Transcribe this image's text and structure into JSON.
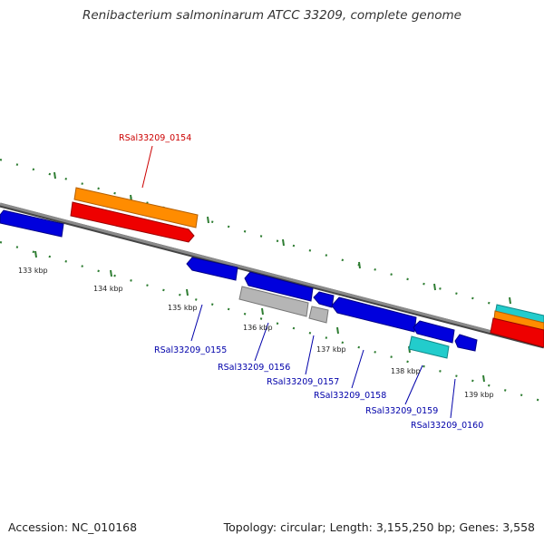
{
  "title": "Renibacterium salmoninarum ATCC 33209, complete genome",
  "footer": {
    "accession": "Accession: NC_010168",
    "summary": "Topology: circular; Length: 3,155,250 bp; Genes: 3,558"
  },
  "colors": {
    "backbone": "#777777",
    "tick": "#2e7d32",
    "blue_gene": "#0000dd",
    "gray_gene": "#b5b5b5",
    "orange_gene": "#ff8c00",
    "red_gene": "#ee0000",
    "cyan_gene": "#22cccc",
    "label_red": "#cc0000",
    "label_blue": "#0000aa"
  },
  "scale_labels": [
    "133 kbp",
    "134 kbp",
    "135 kbp",
    "136 kbp",
    "137 kbp",
    "138 kbp",
    "139 kbp"
  ],
  "gene_labels": [
    {
      "text": "RSal33209_0154",
      "color": "red"
    },
    {
      "text": "RSal33209_0155",
      "color": "blue"
    },
    {
      "text": "RSal33209_0156",
      "color": "blue"
    },
    {
      "text": "RSal33209_0157",
      "color": "blue"
    },
    {
      "text": "RSal33209_0158",
      "color": "blue"
    },
    {
      "text": "RSal33209_0159",
      "color": "blue"
    },
    {
      "text": "RSal33209_0160",
      "color": "blue"
    }
  ]
}
